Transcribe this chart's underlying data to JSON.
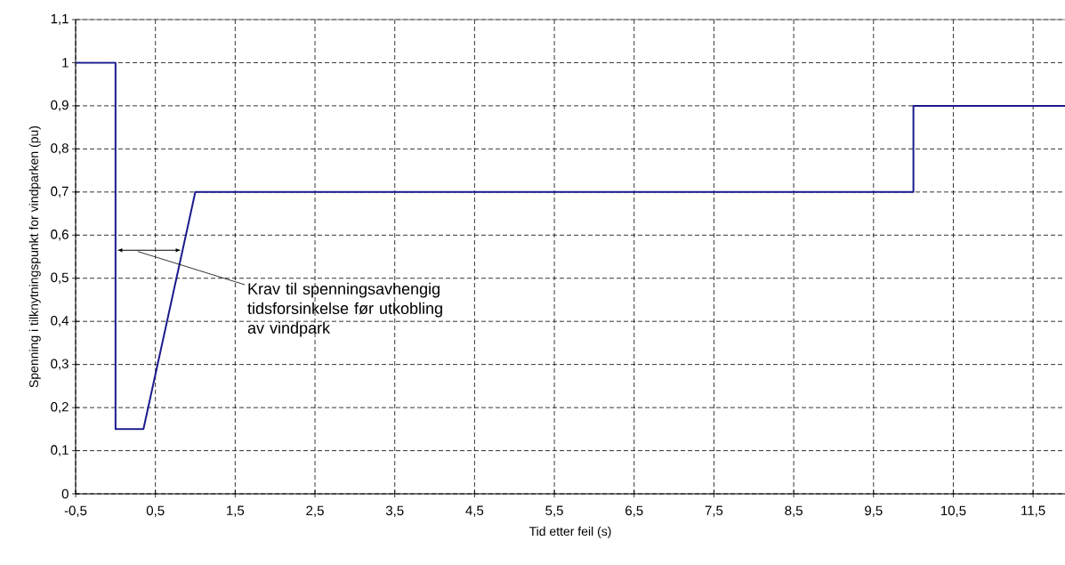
{
  "chart_data": {
    "type": "line",
    "xlabel": "Tid etter feil (s)",
    "ylabel": "Spenning i tilknytningspunkt for vindparken (pu)",
    "x": [
      -0.5,
      0,
      0,
      0.35,
      1,
      10,
      10,
      11.9
    ],
    "series": [
      {
        "color": "#1a1a8c",
        "values": [
          1,
          1,
          0.15,
          0.15,
          0.7,
          0.7,
          0.9,
          0.9
        ]
      }
    ],
    "xlim": [
      -0.5,
      11.9
    ],
    "ylim": [
      0,
      1.1
    ],
    "xticks": [
      {
        "value": -0.5,
        "label": "-0,5"
      },
      {
        "value": 0.5,
        "label": "0,5"
      },
      {
        "value": 1.5,
        "label": "1,5"
      },
      {
        "value": 2.5,
        "label": "2,5"
      },
      {
        "value": 3.5,
        "label": "3,5"
      },
      {
        "value": 4.5,
        "label": "4,5"
      },
      {
        "value": 5.5,
        "label": "5,5"
      },
      {
        "value": 6.5,
        "label": "6,5"
      },
      {
        "value": 7.5,
        "label": "7,5"
      },
      {
        "value": 8.5,
        "label": "8,5"
      },
      {
        "value": 9.5,
        "label": "9,5"
      },
      {
        "value": 10.5,
        "label": "10,5"
      },
      {
        "value": 11.5,
        "label": "11,5"
      }
    ],
    "yticks": [
      0,
      {
        "value": 0.1,
        "label": "0,1"
      },
      {
        "value": 0.2,
        "label": "0,2"
      },
      {
        "value": 0.3,
        "label": "0,3"
      },
      {
        "value": 0.4,
        "label": "0,4"
      },
      {
        "value": 0.5,
        "label": "0,5"
      },
      {
        "value": 0.6,
        "label": "0,6"
      },
      {
        "value": 0.7,
        "label": "0,7"
      },
      {
        "value": 0.8,
        "label": "0,8"
      },
      {
        "value": 0.9,
        "label": "0,9"
      },
      1,
      {
        "value": 1.1,
        "label": "1,1"
      }
    ],
    "annotations": [
      "Krav til spenningsavhengig tidsforsinkelse før utkobling av vindpark"
    ],
    "grid": true,
    "marker": "none",
    "line_style": "solid"
  }
}
